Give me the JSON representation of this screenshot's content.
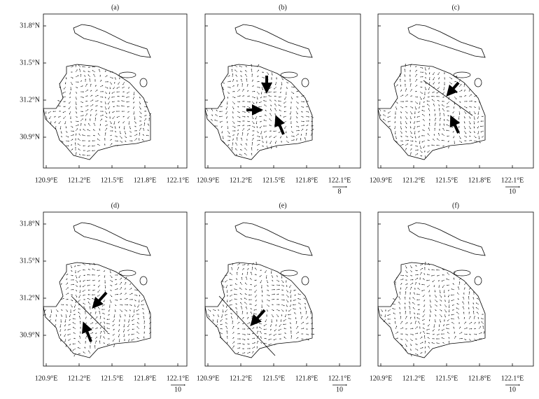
{
  "lat_labels": [
    "31.8°N",
    "31.5°N",
    "31.2°N",
    "30.9°N"
  ],
  "lon_labels": [
    "120.9°E",
    "121.2°E",
    "121.5°E",
    "121.8°E",
    "122.1°E"
  ],
  "panels": [
    {
      "label": "(a)"
    },
    {
      "label": "(b)",
      "scale": "8"
    },
    {
      "label": "(c)",
      "scale": "10"
    },
    {
      "label": "(d)",
      "scale": "10"
    },
    {
      "label": "(e)",
      "scale": "10"
    },
    {
      "label": "(f)",
      "scale": "10"
    }
  ]
}
